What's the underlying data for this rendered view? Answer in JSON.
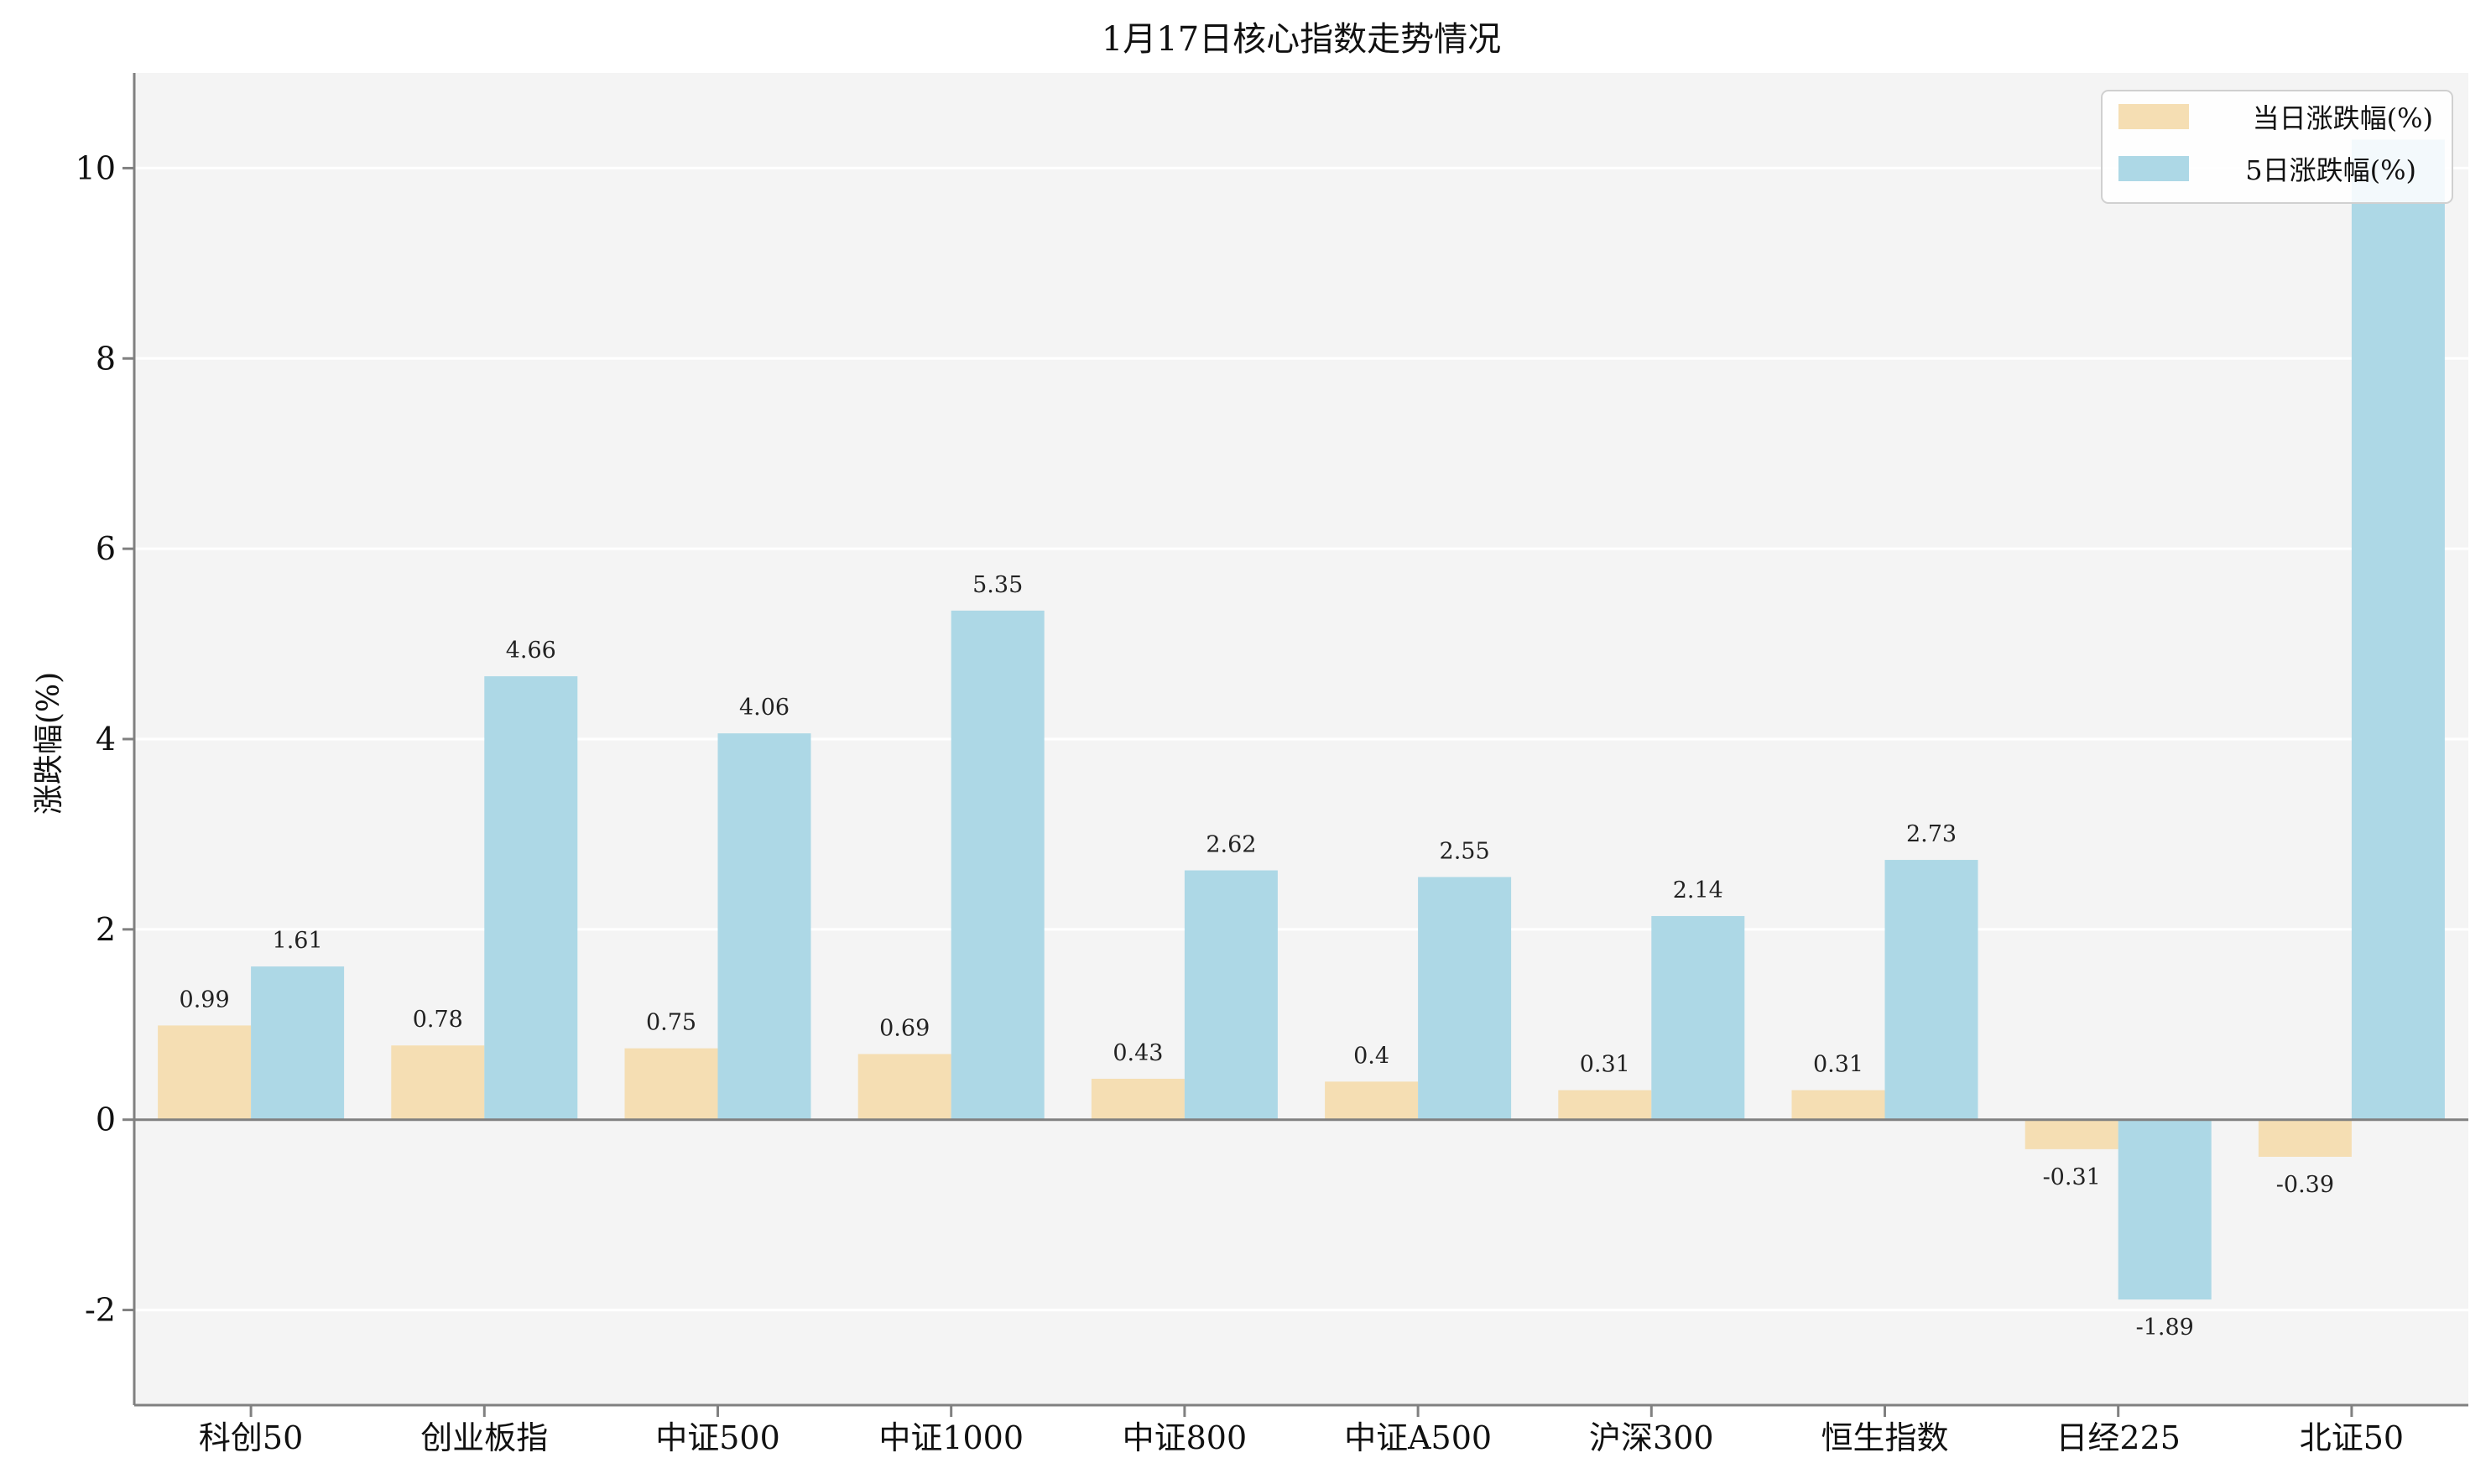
{
  "chart_data": {
    "type": "bar",
    "title": "1月17日核心指数走势情况",
    "xlabel": "",
    "ylabel": "涨跌幅(%)",
    "ylim": [
      -3,
      11
    ],
    "yticks": [
      -2,
      0,
      2,
      4,
      6,
      8,
      10
    ],
    "grid": true,
    "legend_position": "top-right",
    "categories": [
      "科创50",
      "创业板指",
      "中证500",
      "中证1000",
      "中证800",
      "中证A500",
      "沪深300",
      "恒生指数",
      "日经225",
      "北证50"
    ],
    "series": [
      {
        "name": "当日涨跌幅(%)",
        "color": "#f5deb3",
        "values": [
          0.99,
          0.78,
          0.75,
          0.69,
          0.43,
          0.4,
          0.31,
          0.31,
          -0.31,
          -0.39
        ],
        "labels": [
          "0.99",
          "0.78",
          "0.75",
          "0.69",
          "0.43",
          "0.4",
          "0.31",
          "0.31",
          "-0.31",
          "-0.39"
        ]
      },
      {
        "name": "5日涨跌幅(%)",
        "color": "#add8e6",
        "values": [
          1.61,
          4.66,
          4.06,
          5.35,
          2.62,
          2.55,
          2.14,
          2.73,
          -1.89,
          10.3
        ],
        "labels": [
          "1.61",
          "4.66",
          "4.06",
          "5.35",
          "2.62",
          "2.55",
          "2.14",
          "2.73",
          "-1.89",
          ""
        ]
      }
    ]
  }
}
